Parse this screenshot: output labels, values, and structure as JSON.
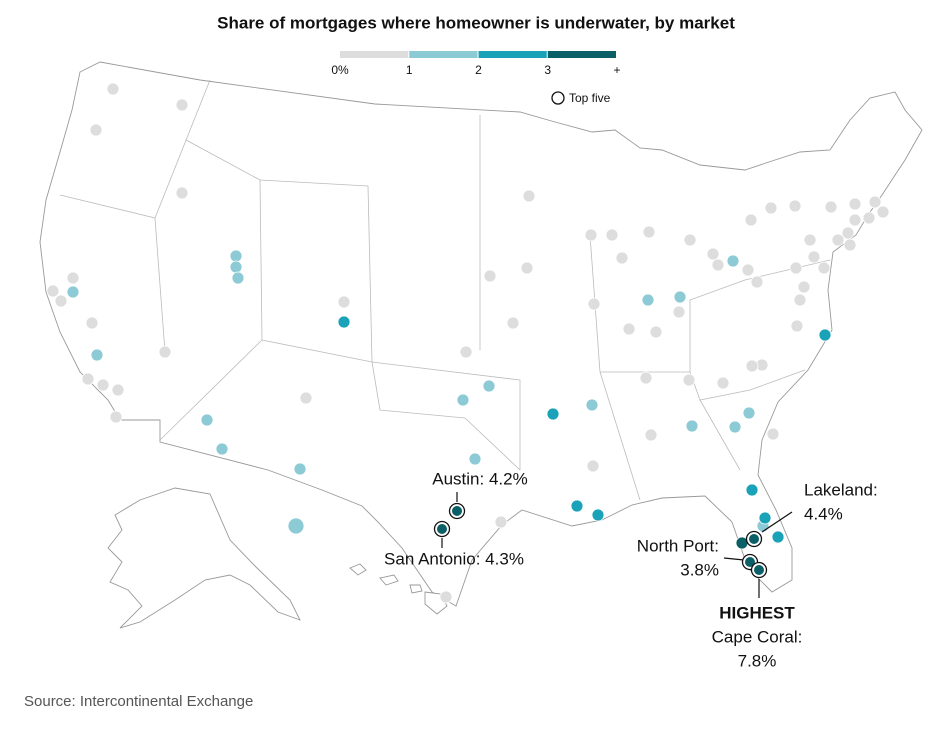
{
  "title": "Share of mortgages where homeowner is underwater, by market",
  "legend": {
    "labels": [
      "0%",
      "1",
      "2",
      "3",
      "+"
    ],
    "colors": [
      "#dddddd",
      "#8ccbd6",
      "#1aa3b8",
      "#0b5f66"
    ],
    "top_five": "Top five"
  },
  "dot_bins": [
    0,
    0,
    0,
    0,
    0,
    0,
    0,
    0,
    0,
    0,
    0,
    0,
    0,
    0,
    0,
    0,
    0,
    0,
    0,
    0,
    0,
    0,
    0,
    0,
    0,
    0,
    0,
    0,
    0,
    0,
    0,
    0,
    0,
    0,
    0,
    0,
    0,
    0,
    0,
    0,
    0,
    0,
    0,
    0,
    0,
    0,
    0,
    0,
    0,
    0,
    0,
    0,
    0,
    0,
    0,
    0,
    0,
    0,
    0,
    0,
    0,
    0,
    1,
    1,
    1,
    1,
    1,
    1,
    1,
    1,
    1,
    1,
    1,
    1,
    1,
    1,
    1,
    1,
    1,
    1,
    1,
    1,
    2,
    2,
    2,
    2,
    2,
    2,
    2,
    2,
    3
  ],
  "top_five": [
    {
      "lines": [
        "Austin: 4.2%"
      ]
    },
    {
      "lines": [
        "San Antonio: 4.3%"
      ]
    },
    {
      "lines": [
        "Lakeland:",
        "4.4%"
      ]
    },
    {
      "lines": [
        "North Port:",
        "3.8%"
      ]
    },
    {
      "highlight": "HIGHEST",
      "lines": [
        "Cape Coral:",
        "7.8%"
      ]
    }
  ],
  "source": "Source: Intercontinental Exchange"
}
